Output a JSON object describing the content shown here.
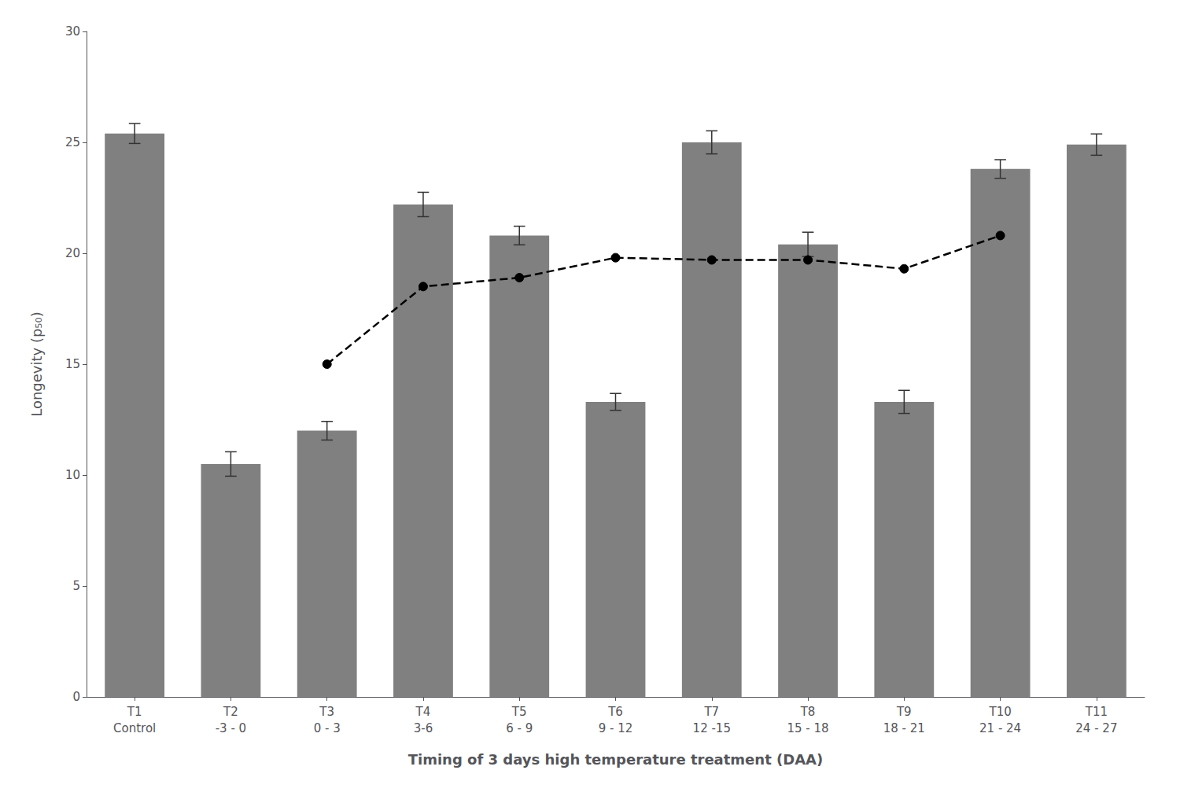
{
  "chart_data": {
    "type": "bar",
    "xlabel": "Timing of 3 days high temperature treatment (DAA)",
    "ylabel": "Longevity (p₅₀)",
    "categories": [
      "T1\nControl",
      "T2\n-3 - 0",
      "T3\n0 - 3",
      "T4\n3-6",
      "T5\n6 - 9",
      "T6\n9 - 12",
      "T7\n12 -15",
      "T8\n15 - 18",
      "T9\n18 - 21",
      "T10\n21 - 24",
      "T11\n24 - 27"
    ],
    "series": [
      {
        "type": "bar",
        "color": "#808080",
        "values": [
          25.4,
          10.5,
          12.0,
          22.2,
          20.8,
          13.3,
          25.0,
          20.4,
          13.3,
          23.8,
          24.9
        ],
        "errors": [
          0.45,
          0.55,
          0.42,
          0.55,
          0.42,
          0.38,
          0.52,
          0.55,
          0.52,
          0.42,
          0.48
        ]
      },
      {
        "type": "line",
        "color": "#000000",
        "line_style": "dashed",
        "marker": "circle",
        "values": [
          null,
          null,
          15.0,
          18.5,
          18.9,
          19.8,
          19.7,
          19.7,
          19.3,
          20.8,
          null
        ]
      }
    ],
    "ylim": [
      0,
      30
    ],
    "yticks": [
      0,
      5,
      10,
      15,
      20,
      25,
      30
    ],
    "grid": false
  }
}
